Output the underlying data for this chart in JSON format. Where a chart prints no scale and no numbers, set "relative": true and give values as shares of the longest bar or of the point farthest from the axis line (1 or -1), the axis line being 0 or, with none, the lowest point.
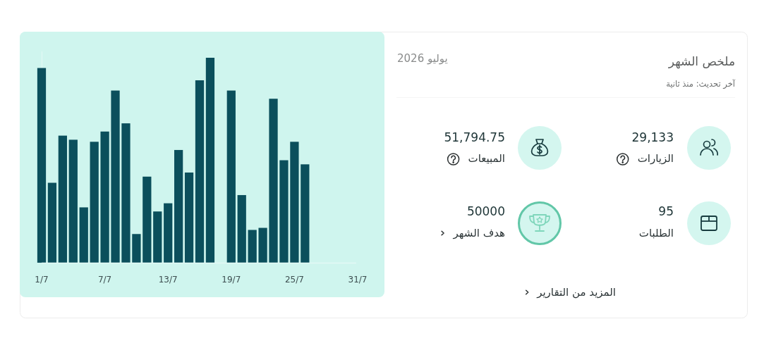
{
  "chart_data": [
    {
      "type": "bar",
      "relative": true,
      "color": "#0b4f5c",
      "x": [
        "--07-01",
        "--07-02",
        "--07-03",
        "--07-04",
        "--07-05",
        "--07-06",
        "--07-07",
        "--07-08",
        "--07-09",
        "--07-10",
        "--07-11",
        "--07-12",
        "--07-13",
        "--07-14",
        "--07-15",
        "--07-16",
        "--07-17",
        "--07-18",
        "--07-19",
        "--07-20",
        "--07-21",
        "--07-22",
        "--07-23",
        "--07-24",
        "--07-25",
        "--07-26"
      ],
      "values": [
        0.95,
        0.39,
        0.62,
        0.6,
        0.27,
        0.59,
        0.64,
        0.84,
        0.68,
        0.14,
        0.42,
        0.25,
        0.29,
        0.55,
        0.44,
        0.89,
        1,
        null,
        0.84,
        0.33,
        0.16,
        0.17,
        0.8,
        0.5,
        0.59,
        0.48
      ],
      "xlim": [
        "--07-01",
        "--07-31"
      ],
      "xticks": [
        {
          "value": "--07-01",
          "label": "1/7"
        },
        {
          "value": "--07-07",
          "label": "7/7"
        },
        {
          "value": "--07-13",
          "label": "13/7"
        },
        {
          "value": "--07-19",
          "label": "19/7"
        },
        {
          "value": "--07-25",
          "label": "25/7"
        },
        {
          "value": "--07-31",
          "label": "31/7"
        }
      ]
    },
    {
      "type": "other",
      "title": "ملخص الشهر",
      "subtitle": "آخر تحديث: منذ ثانية",
      "annotations": [
        "يوليو 2026",
        "29,133",
        "الزيارات",
        "51,794.75",
        "المبيعات",
        "95",
        "الطلبات",
        "50000",
        "هدف الشهر",
        "المزيد من التقارير"
      ]
    }
  ]
}
